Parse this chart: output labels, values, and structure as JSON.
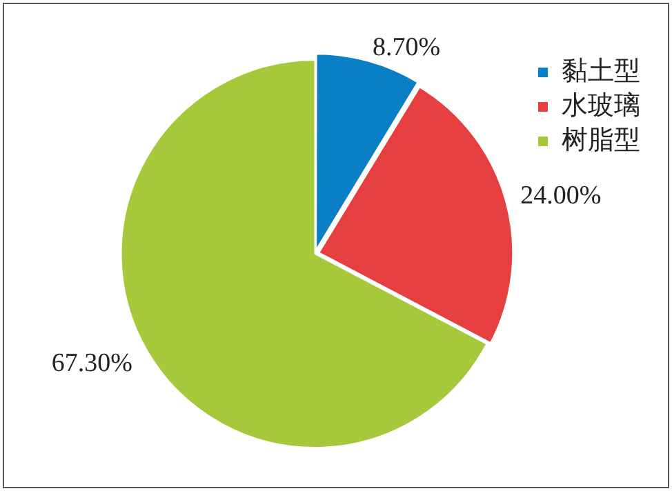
{
  "chart_data": {
    "type": "pie",
    "categories": [
      "黏土型",
      "水玻璃",
      "树脂型"
    ],
    "values": [
      8.7,
      24.0,
      67.3
    ],
    "colors": [
      "#0a7fc6",
      "#e5403f",
      "#a5c93a"
    ],
    "value_labels": [
      "8.70%",
      "24.00%",
      "67.30%"
    ],
    "legend": "top right"
  }
}
